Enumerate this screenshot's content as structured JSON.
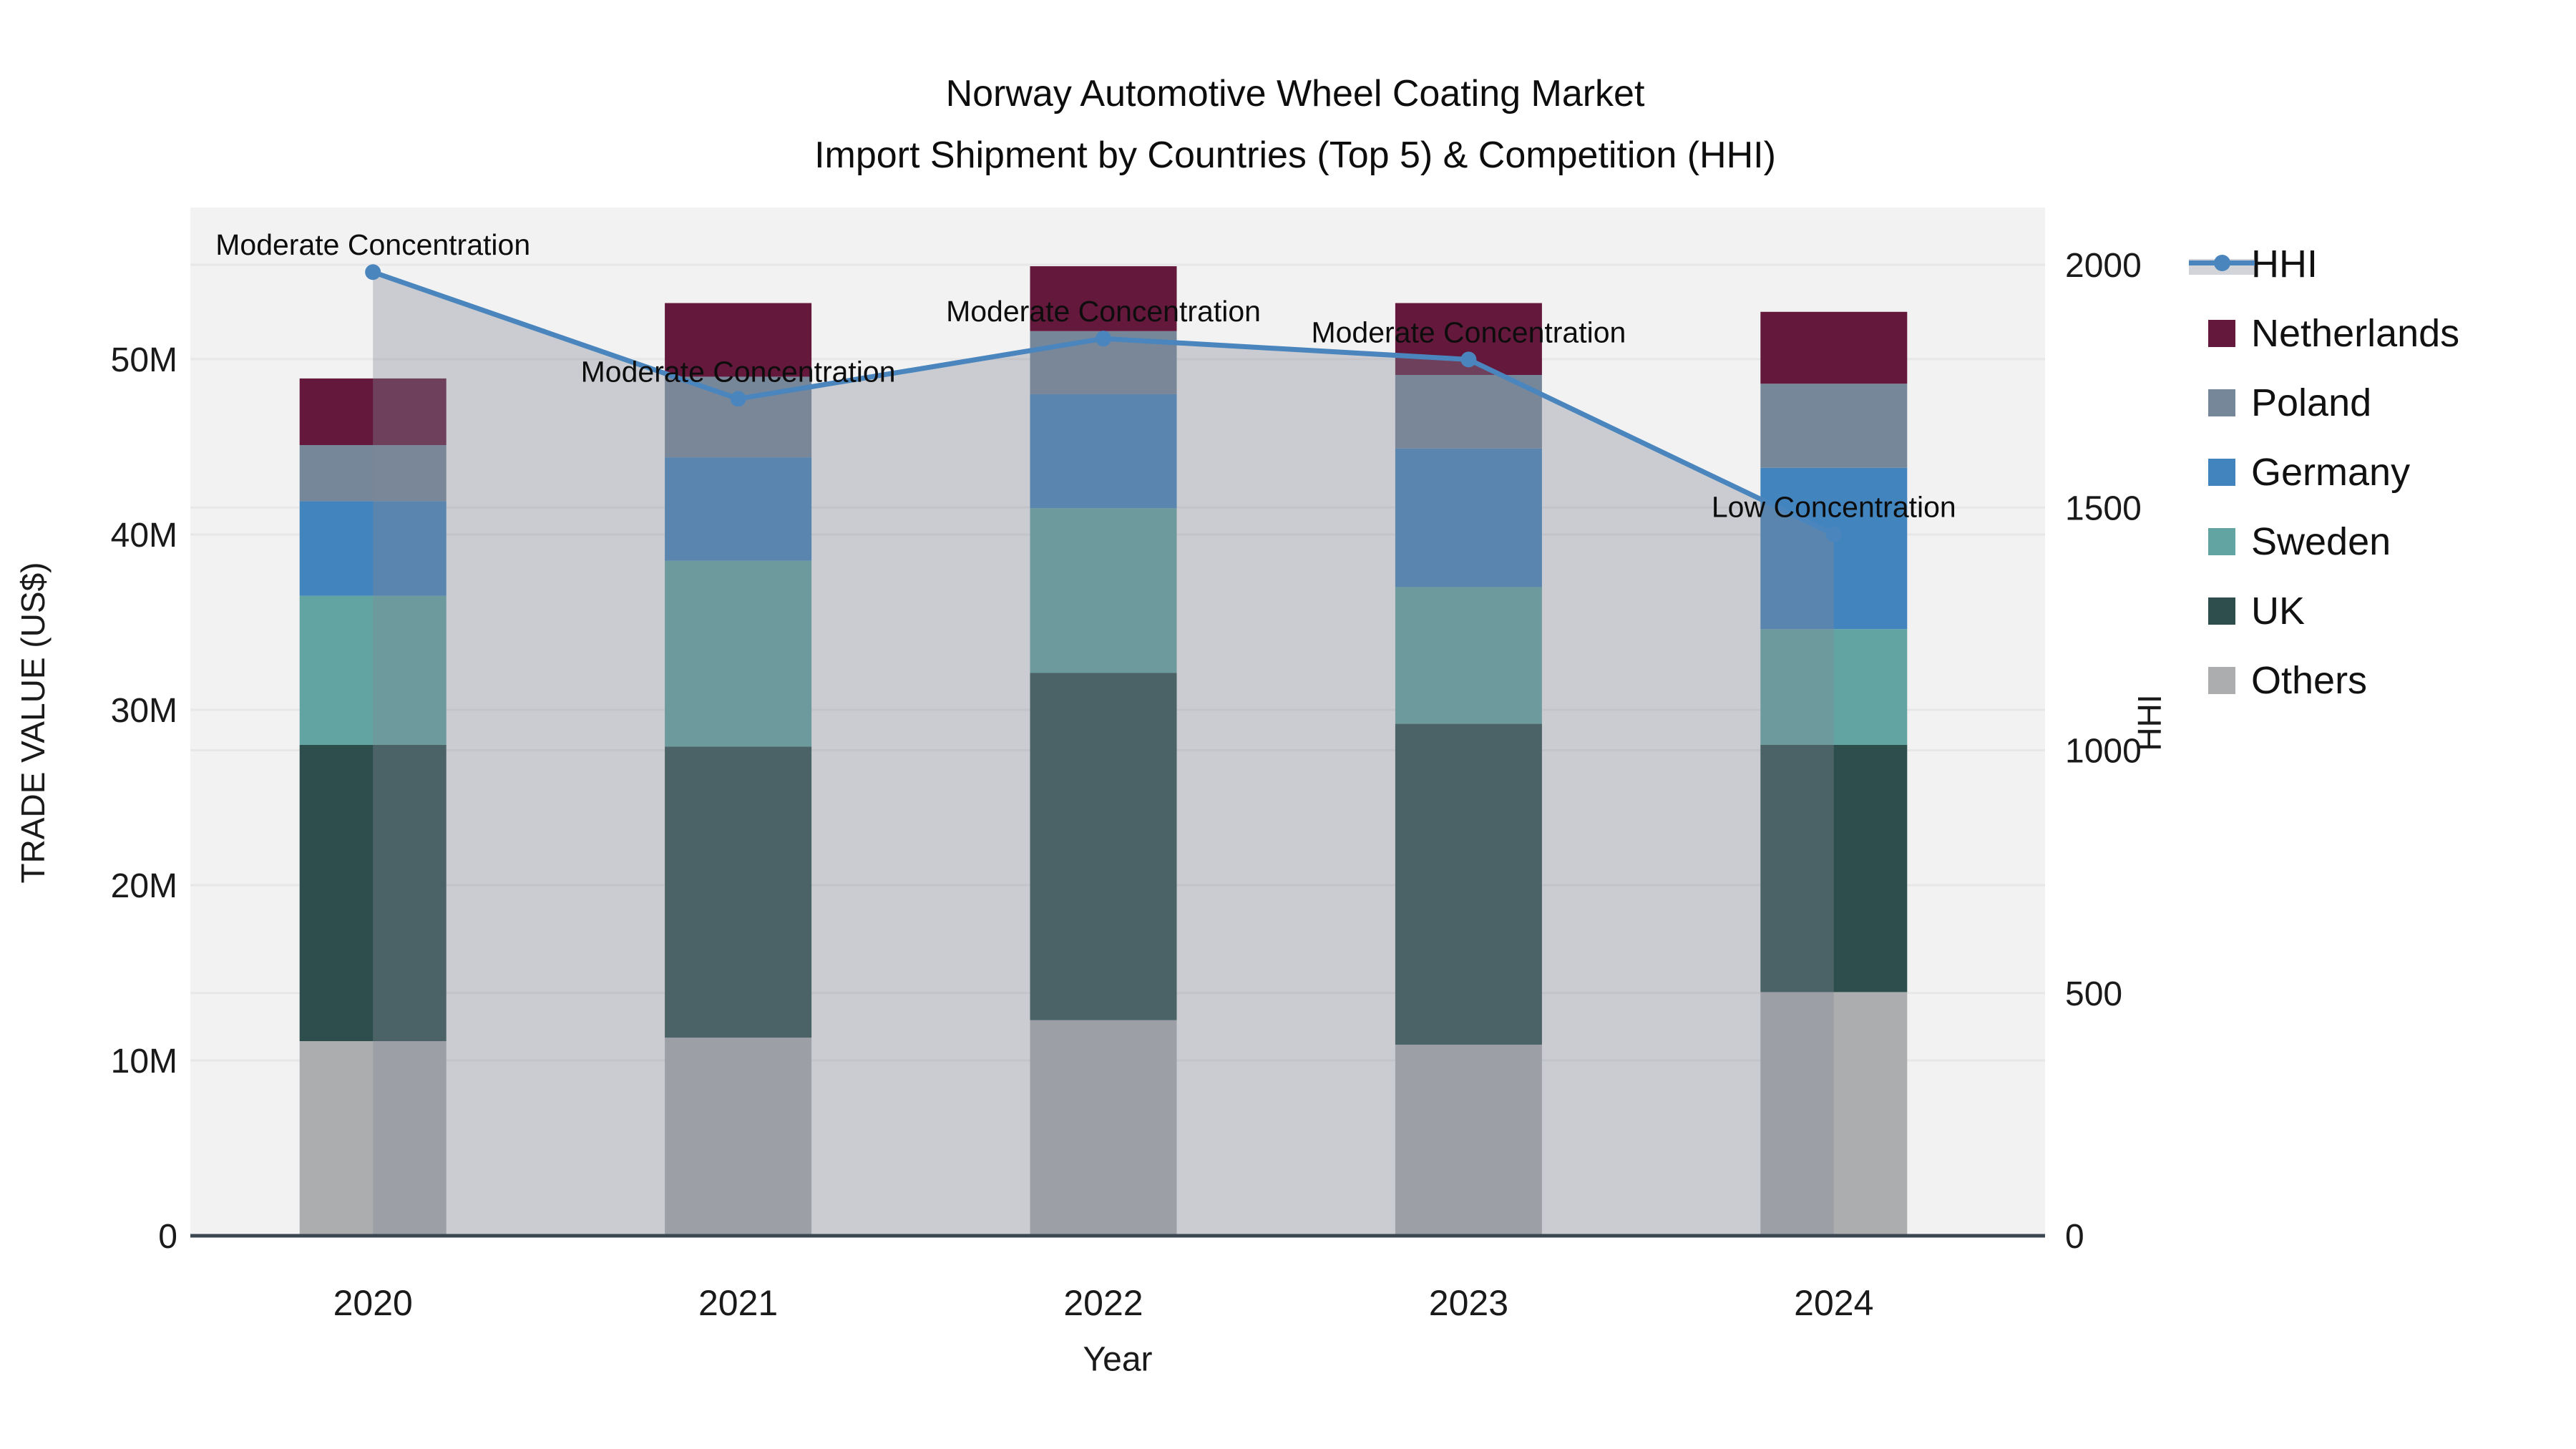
{
  "title": {
    "line1": "Norway Automotive Wheel Coating Market",
    "line2": "Import Shipment by Countries (Top 5) & Competition (HHI)"
  },
  "axes": {
    "y_left": {
      "title": "TRADE VALUE (US$)",
      "tick_labels": [
        "0",
        "10M",
        "20M",
        "30M",
        "40M",
        "50M"
      ],
      "tick_values_musd": [
        0,
        10,
        20,
        30,
        40,
        50
      ]
    },
    "y_right": {
      "title": "HHI",
      "tick_labels": [
        "0",
        "500",
        "1000",
        "1500",
        "2000"
      ],
      "tick_values": [
        0,
        500,
        1000,
        1500,
        2000
      ]
    },
    "x": {
      "title": "Year"
    }
  },
  "legend": {
    "items": [
      {
        "label": "HHI",
        "type": "line",
        "color": "#4A86BD"
      },
      {
        "label": "Netherlands",
        "type": "swatch",
        "color": "#64183C"
      },
      {
        "label": "Poland",
        "type": "swatch",
        "color": "#76879A"
      },
      {
        "label": "Germany",
        "type": "swatch",
        "color": "#4284BE"
      },
      {
        "label": "Sweden",
        "type": "swatch",
        "color": "#62A4A2"
      },
      {
        "label": "UK",
        "type": "swatch",
        "color": "#2D4E4C"
      },
      {
        "label": "Others",
        "type": "swatch",
        "color": "#ACADAF"
      }
    ]
  },
  "chart_data": {
    "type": "bar+line",
    "categories": [
      "2020",
      "2021",
      "2022",
      "2023",
      "2024"
    ],
    "bar_unit": "million US$",
    "bar_stack_order_bottom_to_top": [
      "Others",
      "UK",
      "Sweden",
      "Germany",
      "Poland",
      "Netherlands"
    ],
    "series": [
      {
        "name": "Others",
        "color": "#ACADAF",
        "values": [
          11.1,
          11.3,
          12.3,
          10.9,
          13.9
        ]
      },
      {
        "name": "UK",
        "color": "#2D4E4C",
        "values": [
          16.9,
          16.6,
          19.8,
          18.3,
          14.1
        ]
      },
      {
        "name": "Sweden",
        "color": "#62A4A2",
        "values": [
          8.5,
          10.6,
          9.4,
          7.8,
          6.6
        ]
      },
      {
        "name": "Germany",
        "color": "#4284BE",
        "values": [
          5.4,
          5.9,
          6.5,
          7.9,
          9.2
        ]
      },
      {
        "name": "Poland",
        "color": "#76879A",
        "values": [
          3.2,
          4.6,
          3.6,
          4.2,
          4.8
        ]
      },
      {
        "name": "Netherlands",
        "color": "#64183C",
        "values": [
          3.8,
          4.2,
          3.7,
          4.1,
          4.1
        ]
      }
    ],
    "bar_totals_musd": [
      48.9,
      53.2,
      55.3,
      53.2,
      52.7
    ],
    "line_series": {
      "name": "HHI",
      "color": "#4A86BD",
      "area_fill": "rgba(130,137,150,0.36)",
      "values": [
        1985,
        1724,
        1848,
        1805,
        1445
      ]
    },
    "annotations": [
      {
        "year": "2020",
        "text": "Moderate Concentration"
      },
      {
        "year": "2021",
        "text": "Moderate Concentration"
      },
      {
        "year": "2022",
        "text": "Moderate Concentration"
      },
      {
        "year": "2023",
        "text": "Moderate Concentration"
      },
      {
        "year": "2024",
        "text": "Low Concentration"
      }
    ],
    "ylim_left_musd": [
      0,
      58.65
    ],
    "ylim_right_hhi": [
      0,
      2118
    ],
    "grid": true,
    "legend_position": "right"
  },
  "style": {
    "plot_bg": "#F2F2F3",
    "grid_color": "#E7E7E8",
    "axis_line_color": "#3B4750",
    "annotation_color": "#0d0d0d",
    "tick_color": "#1a1a1a"
  }
}
